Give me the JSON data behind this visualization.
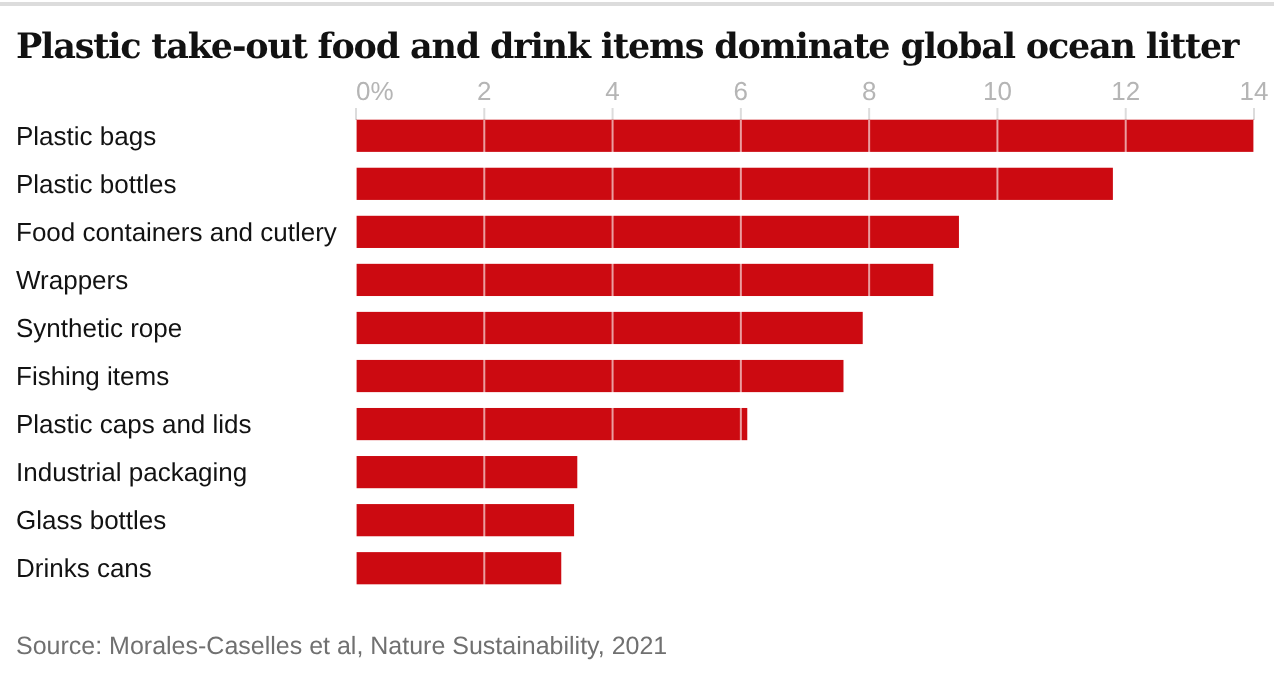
{
  "chart_data": {
    "type": "bar",
    "orientation": "horizontal",
    "title": "Plastic take-out food and drink items dominate global ocean litter",
    "categories": [
      "Plastic bags",
      "Plastic bottles",
      "Food containers and cutlery",
      "Wrappers",
      "Synthetic rope",
      "Fishing items",
      "Plastic caps and lids",
      "Industrial packaging",
      "Glass bottles",
      "Drinks cans"
    ],
    "values": [
      14.0,
      11.8,
      9.4,
      9.0,
      7.9,
      7.6,
      6.1,
      3.45,
      3.4,
      3.2
    ],
    "color": "#cc0a11",
    "xlim": [
      0,
      14
    ],
    "xticks": [
      {
        "value": 0,
        "label": "0%"
      },
      2,
      4,
      6,
      8,
      10,
      12,
      14
    ],
    "grid": "x",
    "annotations": [
      "Source: Morales-Caselles et al, Nature Sustainability, 2021"
    ]
  }
}
